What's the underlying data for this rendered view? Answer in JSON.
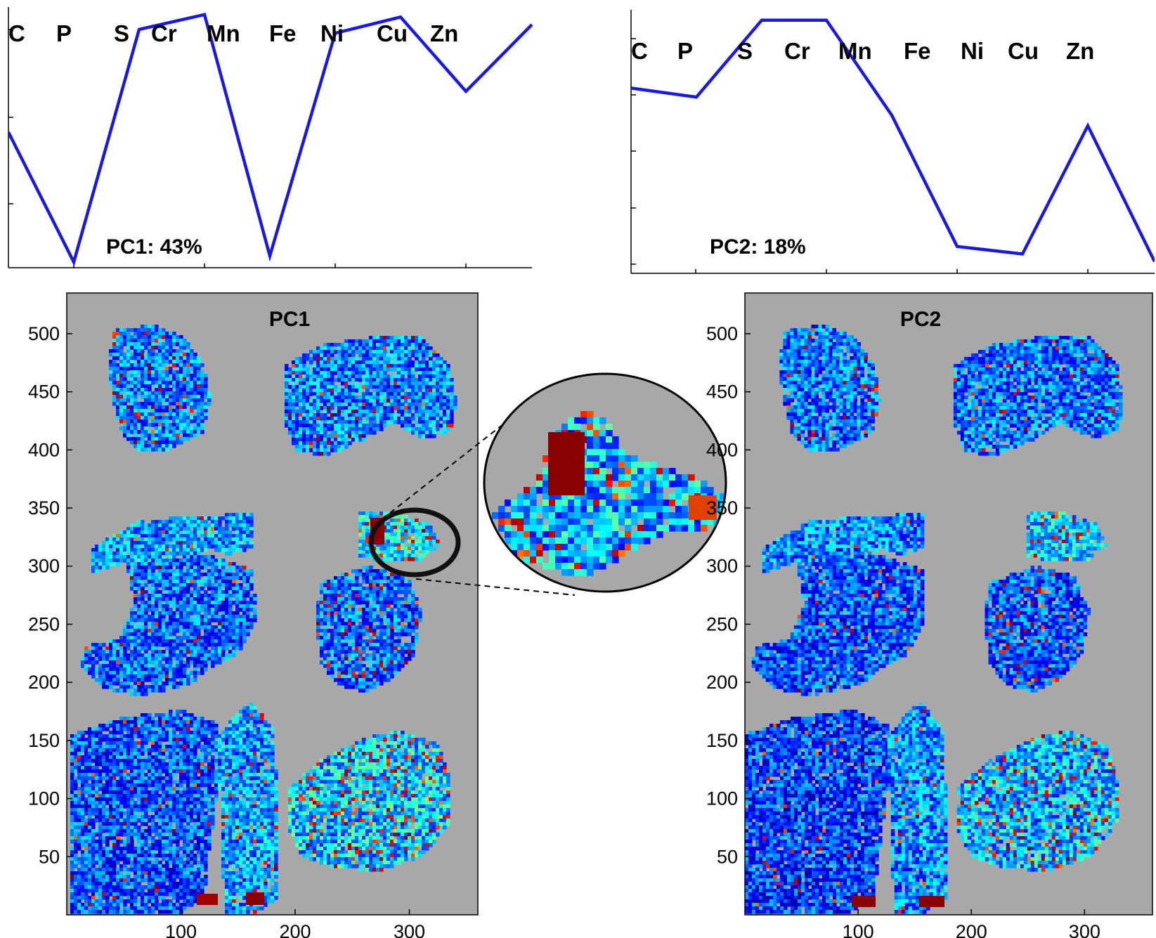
{
  "chart_data": [
    {
      "type": "line",
      "name": "PC1 loadings",
      "annotation": "PC1: 43%",
      "elements": [
        "C",
        "P",
        "S",
        "Cr",
        "Mn",
        "Fe",
        "Ni",
        "Cu",
        "Zn"
      ],
      "values": [
        0.05,
        -1.0,
        0.88,
        1.0,
        -0.95,
        0.85,
        0.98,
        0.38,
        0.92
      ],
      "ylim": [
        -1.0,
        1.05
      ],
      "series_color": "#1a1adf"
    },
    {
      "type": "line",
      "name": "PC2 loadings",
      "annotation": "PC2: 18%",
      "elements": [
        "C",
        "P",
        "S",
        "Cr",
        "Mn",
        "Fe",
        "Ni",
        "Cu",
        "Zn"
      ],
      "values": [
        0.55,
        0.49,
        1.0,
        1.0,
        0.37,
        -0.5,
        -0.55,
        0.3,
        -0.6
      ],
      "ylim": [
        -0.65,
        1.05
      ],
      "series_color": "#1a1adf"
    },
    {
      "type": "heatmap",
      "title": "PC1",
      "xticks": [
        "100",
        "200",
        "300"
      ],
      "yticks": [
        "50",
        "100",
        "150",
        "200",
        "250",
        "300",
        "350",
        "400",
        "450",
        "500"
      ],
      "xlim": [
        0,
        360
      ],
      "ylim": [
        0,
        535
      ],
      "background": "#a8a8a8",
      "colormap": "jet",
      "zoom_inset": "magnified view of region near x=280, y=320"
    },
    {
      "type": "heatmap",
      "title": "PC2",
      "xticks": [
        "100",
        "200",
        "300"
      ],
      "yticks": [
        "50",
        "100",
        "150",
        "200",
        "250",
        "300",
        "350",
        "400",
        "450",
        "500"
      ],
      "xlim": [
        0,
        360
      ],
      "ylim": [
        0,
        535
      ],
      "background": "#a8a8a8",
      "colormap": "jet"
    }
  ]
}
